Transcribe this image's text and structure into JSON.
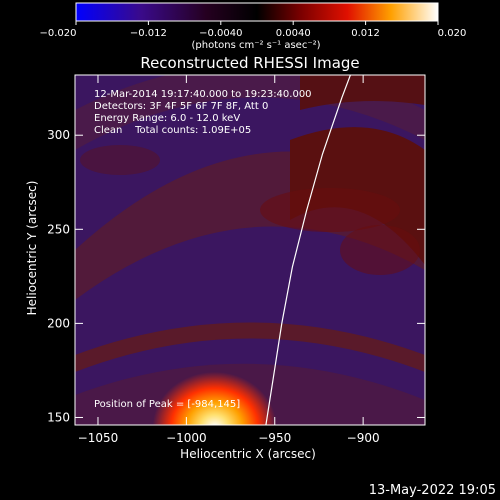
{
  "chart_data": {
    "type": "heatmap",
    "title": "Reconstructed RHESSI Image",
    "xlabel": "Heliocentric X (arcsec)",
    "ylabel": "Heliocentric Y (arcsec)",
    "xlim": [
      -1063,
      -865
    ],
    "ylim": [
      146,
      332
    ],
    "x_ticks": [
      -1050,
      -1000,
      -950,
      -900
    ],
    "x_tick_labels": [
      "−1050",
      "−1000",
      "−950",
      "−900"
    ],
    "y_ticks": [
      150,
      200,
      250,
      300
    ],
    "y_tick_labels": [
      "150",
      "200",
      "250",
      "300"
    ],
    "colorbar": {
      "range": [
        -0.02,
        0.02
      ],
      "ticks": [
        -0.02,
        -0.012,
        -0.004,
        0.004,
        0.012,
        0.02
      ],
      "tick_labels": [
        "−0.020",
        "−0.012",
        "−0.0040",
        "0.0040",
        "0.012",
        "0.020"
      ],
      "unit_label": "(photons cm⁻² s⁻¹ asec⁻²)",
      "colors": [
        "#0000ff",
        "#400080",
        "#200020",
        "#000000",
        "#800000",
        "#ff2000",
        "#ffa000",
        "#ffffff"
      ]
    },
    "peak": {
      "x": -984,
      "y": 145
    },
    "limb_curve": [
      [
        -955,
        146
      ],
      [
        -951,
        170
      ],
      [
        -946,
        200
      ],
      [
        -940,
        230
      ],
      [
        -932,
        260
      ],
      [
        -923,
        290
      ],
      [
        -912,
        320
      ],
      [
        -904,
        340
      ]
    ],
    "annotations": [
      "12-Mar-2014 19:17:40.000 to 19:23:40.000",
      "Detectors: 3F 4F 5F 6F 7F 8F, Att 0",
      "Energy Range: 6.0 - 12.0 keV",
      "Clean    Total counts: 1.09E+05"
    ],
    "peak_label": "Position of Peak = [-984,145]"
  },
  "footer_timestamp": "13-May-2022 19:05"
}
